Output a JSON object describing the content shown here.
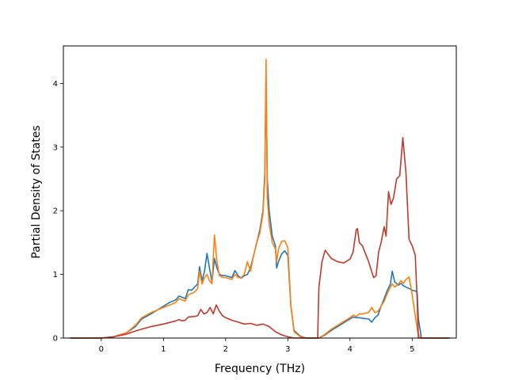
{
  "chart_data": {
    "type": "line",
    "title": "",
    "xlabel": "Frequency (THz)",
    "ylabel": "Partial Density of States",
    "xlim": [
      -0.61,
      5.71
    ],
    "ylim": [
      0,
      4.59
    ],
    "xticks": [
      0,
      1,
      2,
      3,
      4,
      5
    ],
    "yticks": [
      0,
      1,
      2,
      3,
      4
    ],
    "grid": false,
    "legend": "none",
    "series": [
      {
        "color": "#1f77b4",
        "x": [
          -0.5,
          0.0,
          0.2,
          0.4,
          0.55,
          0.65,
          0.8,
          1.0,
          1.1,
          1.2,
          1.25,
          1.3,
          1.35,
          1.4,
          1.45,
          1.5,
          1.55,
          1.58,
          1.62,
          1.66,
          1.7,
          1.74,
          1.78,
          1.82,
          1.86,
          1.9,
          1.95,
          2.0,
          2.1,
          2.15,
          2.2,
          2.25,
          2.3,
          2.35,
          2.4,
          2.45,
          2.5,
          2.55,
          2.6,
          2.63,
          2.65,
          2.67,
          2.7,
          2.75,
          2.8,
          2.82,
          2.85,
          2.9,
          2.95,
          3.0,
          3.05,
          3.1,
          3.2,
          3.3,
          3.5,
          3.6,
          3.7,
          3.8,
          3.9,
          4.0,
          4.05,
          4.1,
          4.15,
          4.2,
          4.3,
          4.35,
          4.4,
          4.45,
          4.5,
          4.55,
          4.6,
          4.65,
          4.68,
          4.72,
          4.78,
          4.82,
          4.86,
          4.9,
          4.95,
          5.0,
          5.05,
          5.08,
          5.1,
          5.15,
          5.6
        ],
        "y": [
          0.0,
          0.0,
          0.02,
          0.08,
          0.18,
          0.3,
          0.38,
          0.5,
          0.56,
          0.6,
          0.66,
          0.64,
          0.62,
          0.76,
          0.75,
          0.8,
          0.85,
          1.12,
          0.9,
          1.05,
          1.33,
          1.1,
          0.88,
          1.25,
          1.1,
          1.0,
          0.98,
          0.98,
          0.95,
          1.06,
          0.98,
          0.94,
          0.98,
          1.0,
          1.1,
          1.3,
          1.5,
          1.7,
          2.0,
          2.6,
          4.05,
          2.5,
          2.0,
          1.6,
          1.45,
          1.1,
          1.2,
          1.32,
          1.37,
          1.3,
          0.5,
          0.12,
          0.03,
          0.0,
          0.0,
          0.05,
          0.12,
          0.18,
          0.24,
          0.3,
          0.33,
          0.32,
          0.32,
          0.31,
          0.3,
          0.25,
          0.32,
          0.36,
          0.5,
          0.62,
          0.75,
          0.85,
          1.05,
          0.88,
          0.83,
          0.86,
          0.82,
          0.8,
          0.78,
          0.75,
          0.74,
          0.72,
          0.3,
          0.0,
          0.0
        ]
      },
      {
        "color": "#ff7f0e",
        "x": [
          -0.5,
          0.0,
          0.2,
          0.4,
          0.55,
          0.65,
          0.8,
          1.0,
          1.1,
          1.2,
          1.25,
          1.3,
          1.35,
          1.4,
          1.45,
          1.5,
          1.55,
          1.58,
          1.62,
          1.66,
          1.7,
          1.74,
          1.78,
          1.82,
          1.86,
          1.9,
          1.95,
          2.0,
          2.1,
          2.15,
          2.2,
          2.25,
          2.3,
          2.35,
          2.4,
          2.45,
          2.5,
          2.55,
          2.6,
          2.63,
          2.65,
          2.67,
          2.7,
          2.75,
          2.8,
          2.82,
          2.85,
          2.9,
          2.95,
          3.0,
          3.05,
          3.1,
          3.2,
          3.3,
          3.5,
          3.6,
          3.7,
          3.8,
          3.9,
          4.0,
          4.05,
          4.1,
          4.15,
          4.2,
          4.3,
          4.35,
          4.4,
          4.45,
          4.5,
          4.55,
          4.6,
          4.65,
          4.68,
          4.72,
          4.78,
          4.82,
          4.86,
          4.9,
          4.95,
          5.0,
          5.05,
          5.08,
          5.1,
          5.15,
          5.6
        ],
        "y": [
          0.0,
          0.0,
          0.02,
          0.08,
          0.2,
          0.32,
          0.4,
          0.48,
          0.52,
          0.56,
          0.62,
          0.6,
          0.58,
          0.68,
          0.7,
          0.72,
          0.78,
          1.05,
          0.85,
          0.95,
          1.0,
          0.9,
          0.85,
          1.62,
          1.2,
          0.98,
          0.95,
          0.95,
          0.92,
          1.0,
          0.95,
          0.95,
          1.0,
          1.2,
          1.05,
          1.3,
          1.5,
          1.65,
          1.95,
          2.5,
          4.38,
          2.2,
          1.8,
          1.5,
          1.4,
          1.2,
          1.4,
          1.52,
          1.53,
          1.42,
          0.5,
          0.1,
          0.02,
          0.0,
          0.0,
          0.06,
          0.14,
          0.2,
          0.26,
          0.32,
          0.36,
          0.34,
          0.38,
          0.38,
          0.4,
          0.48,
          0.4,
          0.42,
          0.5,
          0.58,
          0.7,
          0.8,
          0.85,
          0.8,
          0.85,
          0.9,
          0.86,
          0.92,
          0.96,
          0.68,
          0.35,
          0.15,
          0.05,
          0.0,
          0.0
        ]
      },
      {
        "color": "#c0392b",
        "x": [
          -0.5,
          0.0,
          0.2,
          0.4,
          0.55,
          0.65,
          0.8,
          1.0,
          1.2,
          1.25,
          1.3,
          1.35,
          1.4,
          1.5,
          1.55,
          1.6,
          1.65,
          1.7,
          1.75,
          1.8,
          1.85,
          1.9,
          1.95,
          2.0,
          2.1,
          2.2,
          2.3,
          2.4,
          2.5,
          2.6,
          2.7,
          2.8,
          2.9,
          3.0,
          3.1,
          3.2,
          3.3,
          3.48,
          3.5,
          3.55,
          3.6,
          3.7,
          3.8,
          3.9,
          4.0,
          4.05,
          4.1,
          4.12,
          4.15,
          4.2,
          4.3,
          4.38,
          4.42,
          4.46,
          4.5,
          4.55,
          4.58,
          4.62,
          4.66,
          4.7,
          4.75,
          4.8,
          4.85,
          4.9,
          4.95,
          5.0,
          5.05,
          5.08,
          5.1,
          5.15,
          5.6
        ],
        "y": [
          0.0,
          0.0,
          0.02,
          0.06,
          0.11,
          0.14,
          0.18,
          0.22,
          0.27,
          0.29,
          0.27,
          0.28,
          0.33,
          0.34,
          0.35,
          0.45,
          0.38,
          0.4,
          0.48,
          0.38,
          0.52,
          0.42,
          0.35,
          0.32,
          0.28,
          0.25,
          0.22,
          0.23,
          0.2,
          0.22,
          0.18,
          0.1,
          0.05,
          0.02,
          0.0,
          0.0,
          0.0,
          0.0,
          0.8,
          1.2,
          1.38,
          1.25,
          1.2,
          1.18,
          1.24,
          1.35,
          1.7,
          1.72,
          1.5,
          1.45,
          1.2,
          0.95,
          0.98,
          1.35,
          1.5,
          1.75,
          1.6,
          2.3,
          2.1,
          2.2,
          2.5,
          2.55,
          3.15,
          2.6,
          1.55,
          1.45,
          1.3,
          0.6,
          0.0,
          0.0,
          0.0
        ]
      }
    ]
  }
}
